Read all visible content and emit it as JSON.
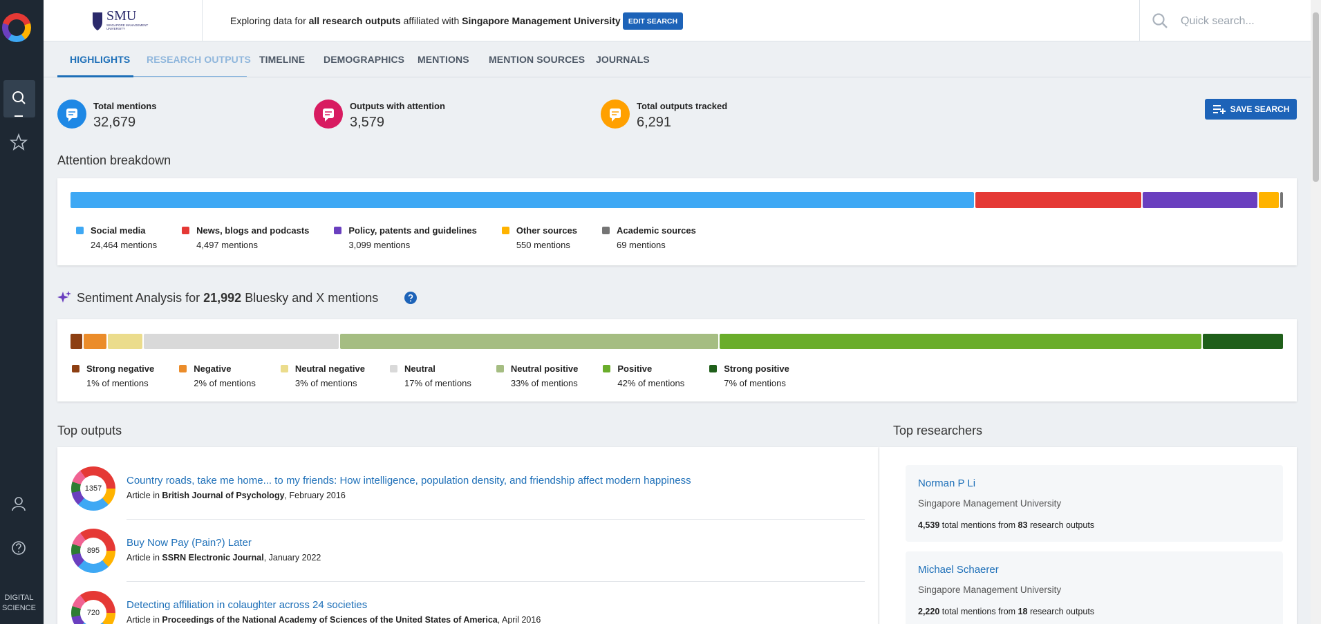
{
  "header": {
    "logo": "SMU",
    "logo_subtitle": "SINGAPORE MANAGEMENT UNIVERSITY",
    "description_prefix": "Exploring data for",
    "description_scope": "all research outputs",
    "description_mid": "affiliated with",
    "institution": "Singapore Management University",
    "edit_button": "EDIT SEARCH",
    "search_placeholder": "Quick search..."
  },
  "sidebar": {
    "footer_line1": "DIGITAL",
    "footer_line2": "SCIENCE"
  },
  "tabs": [
    "HIGHLIGHTS",
    "RESEARCH OUTPUTS",
    "TIMELINE",
    "DEMOGRAPHICS",
    "MENTIONS",
    "MENTION SOURCES",
    "JOURNALS"
  ],
  "stats": [
    {
      "label": "Total mentions",
      "value": "32,679"
    },
    {
      "label": "Outputs with attention",
      "value": "3,579"
    },
    {
      "label": "Total outputs tracked",
      "value": "6,291"
    }
  ],
  "save_button": "SAVE SEARCH",
  "attention": {
    "title": "Attention breakdown",
    "segments": [
      {
        "name": "Social media",
        "color": "#3ea8f4",
        "value": 24464,
        "label": "24,464 mentions"
      },
      {
        "name": "News, blogs and podcasts",
        "color": "#e53935",
        "value": 4497,
        "label": "4,497 mentions"
      },
      {
        "name": "Policy, patents and guidelines",
        "color": "#6a3fbf",
        "value": 3099,
        "label": "3,099 mentions"
      },
      {
        "name": "Other sources",
        "color": "#ffb300",
        "value": 550,
        "label": "550 mentions"
      },
      {
        "name": "Academic sources",
        "color": "#757575",
        "value": 69,
        "label": "69 mentions"
      }
    ]
  },
  "sentiment": {
    "title_prefix": "Sentiment Analysis for",
    "count": "21,992",
    "title_suffix": "Bluesky and X mentions",
    "segments": [
      {
        "name": "Strong negative",
        "color": "#8d3f12",
        "value": 1,
        "label": "1% of mentions"
      },
      {
        "name": "Negative",
        "color": "#eb8c2a",
        "value": 2,
        "label": "2% of mentions"
      },
      {
        "name": "Neutral negative",
        "color": "#ebdc8c",
        "value": 3,
        "label": "3% of mentions"
      },
      {
        "name": "Neutral",
        "color": "#d9d9d9",
        "value": 17,
        "label": "17% of mentions"
      },
      {
        "name": "Neutral positive",
        "color": "#a5bd82",
        "value": 33,
        "label": "33% of mentions"
      },
      {
        "name": "Positive",
        "color": "#6aad2b",
        "value": 42,
        "label": "42% of mentions"
      },
      {
        "name": "Strong positive",
        "color": "#1f5f1a",
        "value": 7,
        "label": "7% of mentions"
      }
    ]
  },
  "top_outputs": {
    "title": "Top outputs",
    "items": [
      {
        "score": 1357,
        "title": "Country roads, take me home... to my friends: How intelligence, population density, and friendship affect modern happiness",
        "type": "Article in",
        "journal": "British Journal of Psychology",
        "date_text": ", February 2016"
      },
      {
        "score": 895,
        "title": "Buy Now Pay (Pain?) Later",
        "type": "Article in",
        "journal": "SSRN Electronic Journal",
        "date_text": ", January 2022"
      },
      {
        "score": 720,
        "title": "Detecting affiliation in colaughter across 24 societies",
        "type": "Article in",
        "journal": "Proceedings of the National Academy of Sciences of the United States of America",
        "date_text": ", April 2016"
      }
    ]
  },
  "top_researchers": {
    "title": "Top researchers",
    "items": [
      {
        "name": "Norman P Li",
        "affiliation": "Singapore Management University",
        "mentions": "4,539",
        "mentions_text": "total mentions from",
        "outputs": "83",
        "outputs_text": "research outputs"
      },
      {
        "name": "Michael Schaerer",
        "affiliation": "Singapore Management University",
        "mentions": "2,220",
        "mentions_text": "total mentions from",
        "outputs": "18",
        "outputs_text": "research outputs"
      }
    ]
  }
}
